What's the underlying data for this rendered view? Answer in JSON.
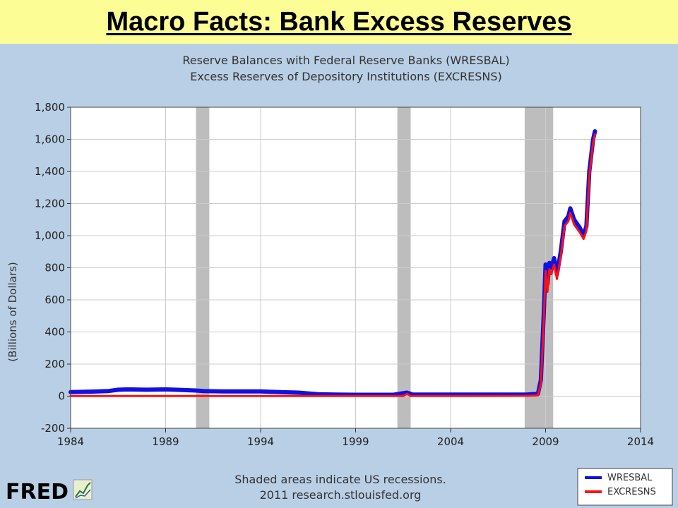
{
  "slide": {
    "title": "Macro Facts: Bank Excess Reserves"
  },
  "chart_data": {
    "type": "line",
    "title_lines": [
      "Reserve Balances with Federal Reserve Banks (WRESBAL)",
      "Excess Reserves of Depository Institutions (EXCRESNS)"
    ],
    "ylabel": "(Billions of Dollars)",
    "xlabel": "",
    "ylim": [
      -200,
      1800
    ],
    "xlim": [
      1984,
      2014
    ],
    "yticks": [
      -200,
      0,
      200,
      400,
      600,
      800,
      1000,
      1200,
      1400,
      1600,
      1800
    ],
    "ytick_labels": [
      "-200",
      "0",
      "200",
      "400",
      "600",
      "800",
      "1,000",
      "1,200",
      "1,400",
      "1,600",
      "1,800"
    ],
    "xticks": [
      1984,
      1989,
      1994,
      1999,
      2004,
      2009,
      2014
    ],
    "xtick_labels": [
      "1984",
      "1989",
      "1994",
      "1999",
      "2004",
      "2009",
      "2014"
    ],
    "grid": true,
    "recessions": [
      [
        1990.6,
        1991.3
      ],
      [
        2001.2,
        2001.9
      ],
      [
        2007.9,
        2009.4
      ]
    ],
    "series": [
      {
        "name": "WRESBAL",
        "color": "#1010e0",
        "points": [
          [
            1984.0,
            25
          ],
          [
            1985.0,
            28
          ],
          [
            1986.0,
            32
          ],
          [
            1986.5,
            40
          ],
          [
            1987.0,
            42
          ],
          [
            1988.0,
            40
          ],
          [
            1989.0,
            42
          ],
          [
            1990.0,
            38
          ],
          [
            1990.6,
            35
          ],
          [
            1991.0,
            32
          ],
          [
            1992.0,
            30
          ],
          [
            1993.0,
            30
          ],
          [
            1994.0,
            30
          ],
          [
            1995.0,
            25
          ],
          [
            1996.0,
            22
          ],
          [
            1997.0,
            12
          ],
          [
            1998.0,
            10
          ],
          [
            1999.0,
            9
          ],
          [
            2000.0,
            9
          ],
          [
            2001.0,
            9
          ],
          [
            2001.7,
            22
          ],
          [
            2002.0,
            10
          ],
          [
            2003.0,
            10
          ],
          [
            2004.0,
            10
          ],
          [
            2005.0,
            10
          ],
          [
            2006.0,
            10
          ],
          [
            2007.0,
            10
          ],
          [
            2008.0,
            10
          ],
          [
            2008.6,
            15
          ],
          [
            2008.75,
            100
          ],
          [
            2008.9,
            500
          ],
          [
            2009.0,
            820
          ],
          [
            2009.1,
            700
          ],
          [
            2009.2,
            830
          ],
          [
            2009.3,
            800
          ],
          [
            2009.45,
            860
          ],
          [
            2009.6,
            760
          ],
          [
            2009.8,
            900
          ],
          [
            2010.0,
            1090
          ],
          [
            2010.2,
            1120
          ],
          [
            2010.3,
            1170
          ],
          [
            2010.5,
            1100
          ],
          [
            2010.8,
            1050
          ],
          [
            2011.0,
            1000
          ],
          [
            2011.15,
            1060
          ],
          [
            2011.3,
            1400
          ],
          [
            2011.5,
            1600
          ],
          [
            2011.6,
            1650
          ]
        ]
      },
      {
        "name": "EXCRESNS",
        "color": "#ff1010",
        "points": [
          [
            1984.0,
            1
          ],
          [
            1990.0,
            1
          ],
          [
            1995.0,
            1
          ],
          [
            2000.0,
            1
          ],
          [
            2001.5,
            1
          ],
          [
            2001.7,
            15
          ],
          [
            2001.9,
            1
          ],
          [
            2005.0,
            1
          ],
          [
            2008.0,
            2
          ],
          [
            2008.6,
            5
          ],
          [
            2008.75,
            80
          ],
          [
            2008.9,
            450
          ],
          [
            2009.0,
            780
          ],
          [
            2009.1,
            650
          ],
          [
            2009.2,
            790
          ],
          [
            2009.3,
            760
          ],
          [
            2009.45,
            820
          ],
          [
            2009.6,
            730
          ],
          [
            2009.8,
            870
          ],
          [
            2010.0,
            1060
          ],
          [
            2010.2,
            1090
          ],
          [
            2010.3,
            1140
          ],
          [
            2010.5,
            1070
          ],
          [
            2010.8,
            1020
          ],
          [
            2011.0,
            980
          ],
          [
            2011.15,
            1030
          ],
          [
            2011.3,
            1370
          ],
          [
            2011.5,
            1580
          ],
          [
            2011.6,
            1630
          ]
        ]
      }
    ],
    "legend": {
      "placement": "bottom-right",
      "entries": [
        "WRESBAL",
        "EXCRESNS"
      ]
    },
    "notes": [
      "Shaded areas indicate US recessions.",
      "2011 research.stlouisfed.org"
    ],
    "logo_text": "FRED"
  },
  "colors": {
    "slide_bg": "#fdfd96",
    "panel_bg": "#b9cfe6",
    "plot_bg": "#ffffff",
    "recession": "#bdbdbd",
    "grid": "#cccccc"
  }
}
